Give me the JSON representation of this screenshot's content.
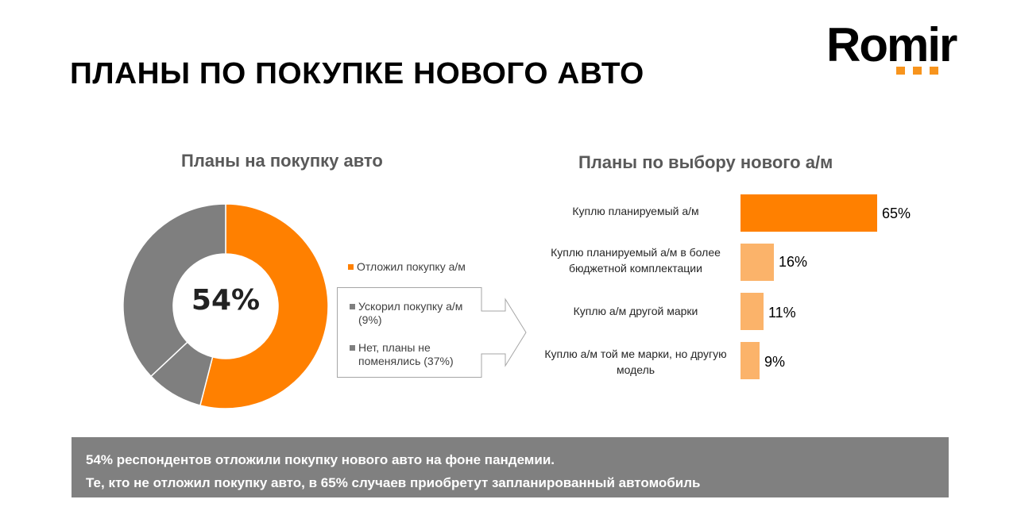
{
  "header": {
    "title": "ПЛАНЫ ПО ПОКУПКЕ НОВОГО АВТО",
    "logo_text": "Romir"
  },
  "colors": {
    "orange": "#FF8000",
    "light_orange": "#FBB36A",
    "gray": "#7F7F7F",
    "logo_dots": "#F7941D",
    "summary_bg": "#808080"
  },
  "left_chart": {
    "title": "Планы на покупку авто",
    "center_label": "54%",
    "legend": [
      {
        "label": "Отложил покупку а/м",
        "color": "#FF8000"
      },
      {
        "label": "Ускорил покупку а/м (9%)",
        "color": "#7F7F7F"
      },
      {
        "label": "Нет, планы не поменялись (37%)",
        "color": "#7F7F7F"
      }
    ]
  },
  "right_chart": {
    "title": "Планы по выбору нового а/м",
    "bars": [
      {
        "label": "Куплю планируемый а/м",
        "value_label": "65%"
      },
      {
        "label": "Куплю планируемый а/м в более бюджетной комплектации",
        "value_label": "16%"
      },
      {
        "label": "Куплю а/м другой марки",
        "value_label": "11%"
      },
      {
        "label": "Куплю а/м той ме марки, но другую модель",
        "value_label": "9%"
      }
    ]
  },
  "summary": {
    "line1": "54% респондентов отложили покупку нового авто на фоне пандемии.",
    "line2": "Те, кто не отложил покупку авто, в 65% случаев приобретут запланированный автомобиль"
  },
  "chart_data": [
    {
      "type": "pie",
      "subtype": "donut",
      "title": "Планы на покупку авто",
      "categories": [
        "Отложил покупку а/м",
        "Ускорил покупку а/м",
        "Нет, планы не поменялись"
      ],
      "values": [
        54,
        9,
        37
      ],
      "center_label": "54%",
      "colors": [
        "#FF8000",
        "#7F7F7F",
        "#7F7F7F"
      ],
      "legend_position": "right"
    },
    {
      "type": "bar",
      "orientation": "horizontal",
      "title": "Планы по выбору нового а/м",
      "categories": [
        "Куплю планируемый а/м",
        "Куплю планируемый а/м в более бюджетной комплектации",
        "Куплю а/м другой марки",
        "Куплю а/м той ме марки, но другую модель"
      ],
      "values": [
        65,
        16,
        11,
        9
      ],
      "unit": "%",
      "xlabel": "",
      "ylabel": "",
      "grid": false,
      "colors": [
        "#FF8000",
        "#FBB36A",
        "#FBB36A",
        "#FBB36A"
      ]
    }
  ]
}
